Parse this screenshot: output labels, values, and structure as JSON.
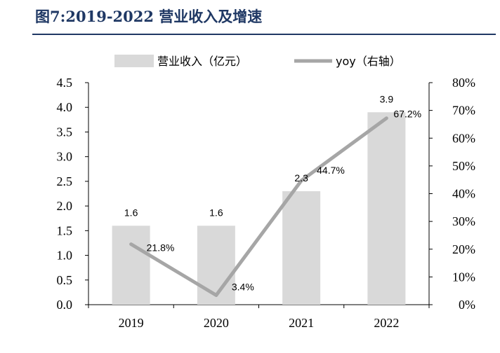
{
  "figure": {
    "number": "图7:",
    "title": "2019-2022 营业收入及增速"
  },
  "chart_data": {
    "type": "bar+line",
    "categories": [
      "2019",
      "2020",
      "2021",
      "2022"
    ],
    "series": [
      {
        "name": "营业收入（亿元）",
        "type": "bar",
        "axis": "left",
        "values": [
          1.6,
          1.6,
          2.3,
          3.9
        ],
        "labels": [
          "1.6",
          "1.6",
          "2.3",
          "3.9"
        ],
        "color": "#d9d9d9"
      },
      {
        "name": "yoy（右轴）",
        "type": "line",
        "axis": "right",
        "values": [
          21.8,
          3.4,
          44.7,
          67.2
        ],
        "labels": [
          "21.8%",
          "3.4%",
          "44.7%",
          "67.2%"
        ],
        "color": "#a6a6a6"
      }
    ],
    "y_left": {
      "min": 0,
      "max": 4.5,
      "ticks": [
        "0.0",
        "0.5",
        "1.0",
        "1.5",
        "2.0",
        "2.5",
        "3.0",
        "3.5",
        "4.0",
        "4.5"
      ]
    },
    "y_right": {
      "min": 0,
      "max": 80,
      "ticks": [
        "0%",
        "10%",
        "20%",
        "30%",
        "40%",
        "50%",
        "60%",
        "70%",
        "80%"
      ]
    },
    "legend_position": "top",
    "grid": false
  }
}
